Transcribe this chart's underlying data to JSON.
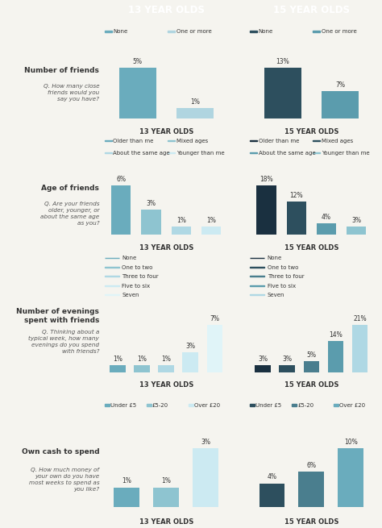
{
  "header_13": "13 YEAR OLDS",
  "header_15": "15 YEAR OLDS",
  "header_color_13": "#6aacbd",
  "header_color_15": "#2d4f5e",
  "bg_color": "#f5f4ef",
  "section1": {
    "title": "Number of friends",
    "question": "Q. How many close\nfriends would you\nsay you have?",
    "legend_13": [
      "None",
      "One or more"
    ],
    "legend_colors_13": [
      "#6aacbd",
      "#b0d5e0"
    ],
    "legend_15": [
      "None",
      "One or more"
    ],
    "legend_colors_15": [
      "#2d4f5e",
      "#5b9cad"
    ],
    "values_13": [
      5,
      1
    ],
    "values_15": [
      13,
      7
    ],
    "xlabel_13": "13 YEAR OLDS",
    "xlabel_15": "15 YEAR OLDS"
  },
  "section2": {
    "title": "Age of friends",
    "question": "Q. Are your friends\nolder, younger, or\nabout the same age\nas you?",
    "legend_13": [
      "Older than me",
      "Mixed ages",
      "About the same age",
      "Younger than me"
    ],
    "legend_colors_13": [
      "#6aacbd",
      "#8ec4d0",
      "#afd8e4",
      "#cceaf2"
    ],
    "legend_15": [
      "Older than me",
      "Mixed ages",
      "About the same age",
      "Younger than me"
    ],
    "legend_colors_15": [
      "#1a3040",
      "#2d4f5e",
      "#5b9cad",
      "#8ec4d0"
    ],
    "values_13": [
      6,
      3,
      1,
      1
    ],
    "values_15": [
      18,
      12,
      4,
      3
    ],
    "xlabel_13": "13 YEAR OLDS",
    "xlabel_15": "15 YEAR OLDS"
  },
  "section3": {
    "title": "Number of evenings\nspent with friends",
    "question": "Q. Thinking about a\ntypical week, how many\nevenings do you spend\nwith friends?",
    "legend_13": [
      "None",
      "One to two",
      "Three to four",
      "Five to six",
      "Seven"
    ],
    "legend_colors_13": [
      "#6aacbd",
      "#8ec4d0",
      "#afd8e4",
      "#cceaf2",
      "#e0f4f8"
    ],
    "legend_15": [
      "None",
      "One to two",
      "Three to four",
      "Five to six",
      "Seven"
    ],
    "legend_colors_15": [
      "#1a3040",
      "#2d4f5e",
      "#4a7e8e",
      "#5b9cad",
      "#afd8e4"
    ],
    "values_13": [
      1,
      1,
      1,
      3,
      7
    ],
    "values_15": [
      3,
      3,
      5,
      14,
      21
    ],
    "xlabel_13": "13 YEAR OLDS",
    "xlabel_15": "15 YEAR OLDS"
  },
  "section4": {
    "title": "Own cash to spend",
    "question": "Q. How much money of\nyour own do you have\nmost weeks to spend as\nyou like?",
    "legend_13": [
      "Under £5",
      "£5-20",
      "Over £20"
    ],
    "legend_colors_13": [
      "#6aacbd",
      "#8ec4d0",
      "#cceaf2"
    ],
    "legend_15": [
      "Under £5",
      "£5-20",
      "Over £20"
    ],
    "legend_colors_15": [
      "#2d4f5e",
      "#4a7e8e",
      "#6aacbd"
    ],
    "values_13": [
      1,
      1,
      3
    ],
    "values_15": [
      4,
      6,
      10
    ],
    "xlabel_13": "13 YEAR OLDS",
    "xlabel_15": "15 YEAR OLDS"
  },
  "divider_color": "#cccccc",
  "text_color": "#333333",
  "label_color": "#555555"
}
